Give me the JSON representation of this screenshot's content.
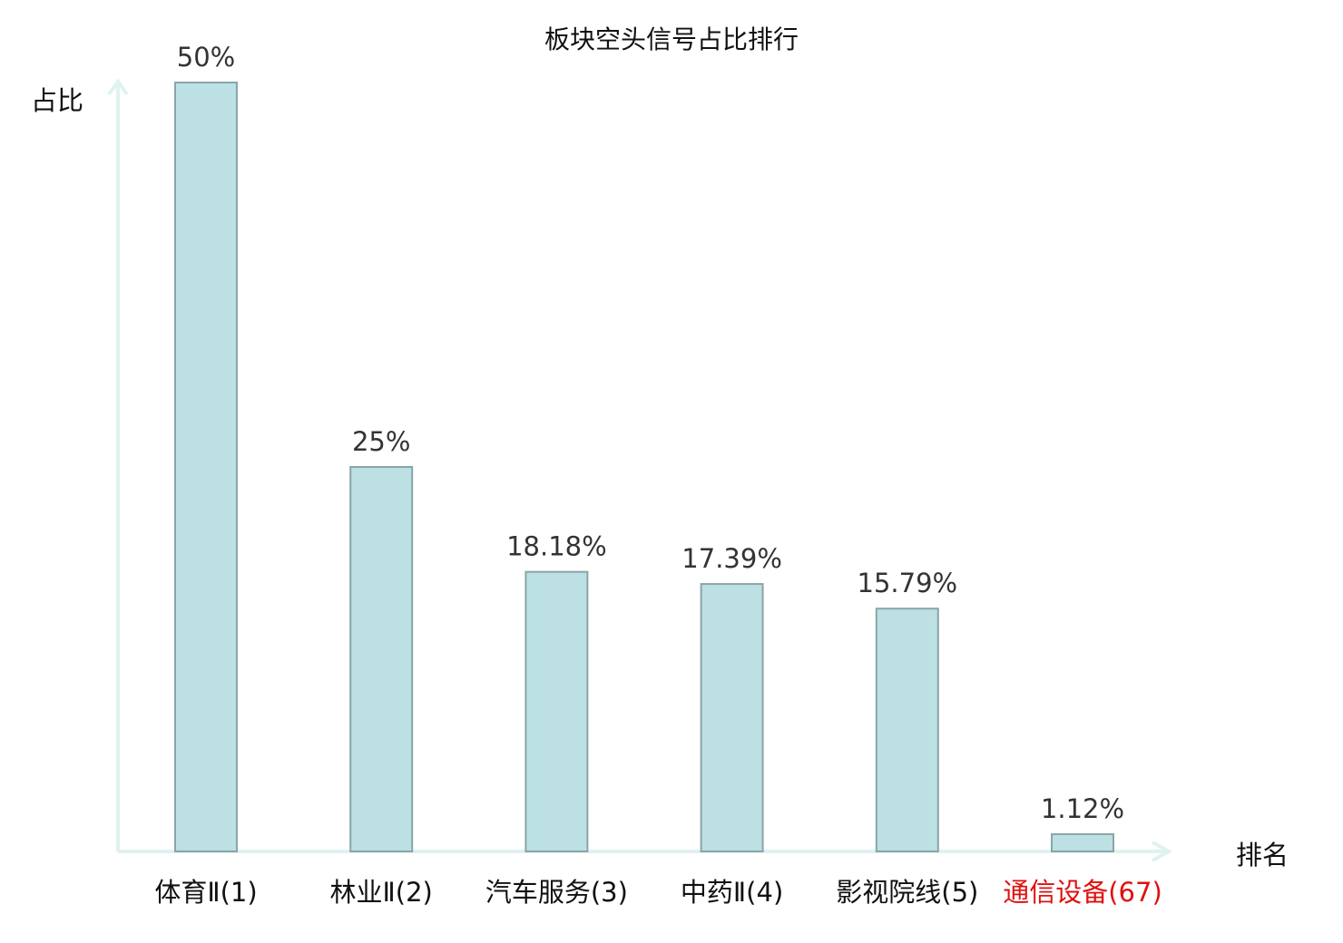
{
  "chart_data": {
    "type": "bar",
    "title": "板块空头信号占比排行",
    "ylabel": "占比",
    "xlabel": "排名",
    "categories": [
      "体育Ⅱ(1)",
      "林业Ⅱ(2)",
      "汽车服务(3)",
      "中药Ⅱ(4)",
      "影视院线(5)",
      "通信设备(67)"
    ],
    "values": [
      50,
      25,
      18.18,
      17.39,
      15.79,
      1.12
    ],
    "value_labels": [
      "50%",
      "25%",
      "18.18%",
      "17.39%",
      "15.79%",
      "1.12%"
    ],
    "highlight_index": 5,
    "highlight_color": "#e01010",
    "bar_color": "#bce0e3",
    "ylim": [
      0,
      50
    ],
    "grid": false
  }
}
